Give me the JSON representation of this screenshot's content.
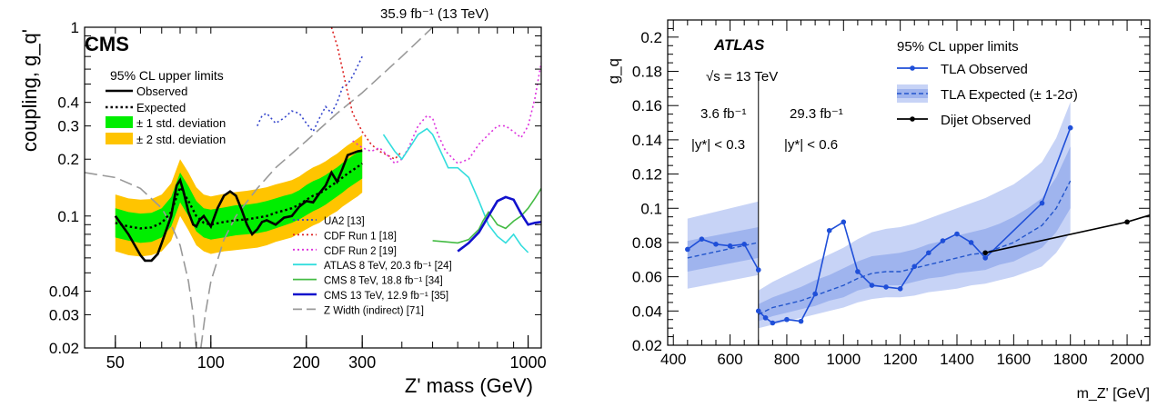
{
  "chart_data": [
    {
      "type": "line",
      "title": "CMS",
      "energy_label": "35.9 fb⁻¹ (13 TeV)",
      "subtitle": "95% CL upper limits",
      "xlabel": "Z' mass (GeV)",
      "ylabel": "coupling, g_q'",
      "xscale": "log",
      "yscale": "log",
      "xlim": [
        40,
        1100
      ],
      "ylim": [
        0.02,
        1
      ],
      "x_ticks": [
        {
          "v": 50,
          "label": "50"
        },
        {
          "v": 100,
          "label": "100"
        },
        {
          "v": 200,
          "label": "200"
        },
        {
          "v": 300,
          "label": "300"
        },
        {
          "v": 1000,
          "label": "1000"
        }
      ],
      "y_ticks": [
        {
          "v": 0.02,
          "label": "0.02"
        },
        {
          "v": 0.03,
          "label": "0.03"
        },
        {
          "v": 0.04,
          "label": "0.04"
        },
        {
          "v": 0.1,
          "label": "0.1"
        },
        {
          "v": 0.2,
          "label": "0.2"
        },
        {
          "v": 0.3,
          "label": "0.3"
        },
        {
          "v": 0.4,
          "label": "0.4"
        },
        {
          "v": 1,
          "label": "1"
        }
      ],
      "legend_main": [
        {
          "label": "Observed",
          "style": "solid"
        },
        {
          "label": "Expected",
          "style": "dotted"
        },
        {
          "label": "± 1 std. deviation",
          "style": "band",
          "color": "#00ee00"
        },
        {
          "label": "± 2 std. deviation",
          "style": "band",
          "color": "#ffc400"
        }
      ],
      "legend_other": [
        {
          "label": "UA2 [13]",
          "color": "#3344cc",
          "dash": "dot"
        },
        {
          "label": "CDF Run 1 [18]",
          "color": "#dd2222",
          "dash": "dot"
        },
        {
          "label": "CDF Run 2 [19]",
          "color": "#dd33dd",
          "dash": "dot"
        },
        {
          "label": "ATLAS 8 TeV, 20.3 fb⁻¹ [24]",
          "color": "#33dddd",
          "dash": "solid"
        },
        {
          "label": "CMS 8 TeV, 18.8 fb⁻¹ [34]",
          "color": "#44bb44",
          "dash": "solid"
        },
        {
          "label": "CMS 13 TeV, 12.9 fb⁻¹ [35]",
          "color": "#1111cc",
          "dash": "solid"
        },
        {
          "label": "Z Width (indirect) [71]",
          "color": "#999999",
          "dash": "dash"
        }
      ],
      "band_x": [
        50,
        55,
        60,
        65,
        70,
        75,
        80,
        85,
        90,
        95,
        100,
        110,
        120,
        130,
        140,
        150,
        160,
        170,
        180,
        190,
        200,
        210,
        220,
        230,
        240,
        250,
        260,
        270,
        280,
        290,
        300
      ],
      "expected": [
        0.092,
        0.088,
        0.086,
        0.087,
        0.092,
        0.105,
        0.142,
        0.12,
        0.1,
        0.092,
        0.09,
        0.093,
        0.095,
        0.096,
        0.098,
        0.1,
        0.104,
        0.107,
        0.11,
        0.115,
        0.122,
        0.128,
        0.132,
        0.138,
        0.145,
        0.152,
        0.16,
        0.168,
        0.175,
        0.182,
        0.19
      ],
      "band1_lo": [
        0.077,
        0.074,
        0.072,
        0.073,
        0.077,
        0.088,
        0.118,
        0.1,
        0.083,
        0.077,
        0.075,
        0.077,
        0.079,
        0.08,
        0.081,
        0.083,
        0.086,
        0.089,
        0.092,
        0.096,
        0.101,
        0.106,
        0.11,
        0.115,
        0.121,
        0.127,
        0.133,
        0.14,
        0.146,
        0.152,
        0.158
      ],
      "band1_hi": [
        0.11,
        0.105,
        0.103,
        0.104,
        0.11,
        0.126,
        0.17,
        0.144,
        0.12,
        0.11,
        0.108,
        0.111,
        0.114,
        0.115,
        0.117,
        0.12,
        0.124,
        0.128,
        0.131,
        0.137,
        0.146,
        0.153,
        0.158,
        0.165,
        0.173,
        0.181,
        0.191,
        0.2,
        0.209,
        0.217,
        0.227
      ],
      "band2_lo": [
        0.065,
        0.062,
        0.061,
        0.062,
        0.065,
        0.074,
        0.1,
        0.084,
        0.07,
        0.065,
        0.063,
        0.065,
        0.066,
        0.067,
        0.068,
        0.07,
        0.073,
        0.075,
        0.077,
        0.081,
        0.085,
        0.089,
        0.092,
        0.097,
        0.102,
        0.106,
        0.112,
        0.117,
        0.122,
        0.127,
        0.133
      ],
      "band2_hi": [
        0.13,
        0.124,
        0.122,
        0.123,
        0.13,
        0.149,
        0.2,
        0.17,
        0.142,
        0.13,
        0.127,
        0.131,
        0.134,
        0.136,
        0.139,
        0.142,
        0.147,
        0.151,
        0.155,
        0.162,
        0.172,
        0.181,
        0.187,
        0.195,
        0.205,
        0.214,
        0.226,
        0.237,
        0.247,
        0.257,
        0.268
      ],
      "observed": {
        "x": [
          50,
          55,
          60,
          62,
          65,
          68,
          70,
          75,
          78,
          80,
          82,
          85,
          88,
          90,
          92,
          95,
          100,
          105,
          110,
          115,
          120,
          125,
          130,
          135,
          140,
          145,
          150,
          160,
          170,
          180,
          190,
          200,
          210,
          220,
          230,
          240,
          250,
          260,
          270,
          280,
          290,
          300
        ],
        "y": [
          0.1,
          0.08,
          0.062,
          0.058,
          0.058,
          0.063,
          0.072,
          0.1,
          0.145,
          0.155,
          0.135,
          0.105,
          0.09,
          0.088,
          0.095,
          0.1,
          0.088,
          0.11,
          0.128,
          0.135,
          0.128,
          0.108,
          0.09,
          0.08,
          0.085,
          0.093,
          0.095,
          0.09,
          0.098,
          0.1,
          0.112,
          0.12,
          0.118,
          0.132,
          0.145,
          0.17,
          0.152,
          0.178,
          0.21,
          0.215,
          0.22,
          0.222
        ]
      },
      "ua2": {
        "x": [
          140,
          145,
          150,
          160,
          170,
          180,
          190,
          200,
          210,
          220,
          230,
          240,
          250,
          260,
          270,
          280,
          300
        ],
        "y": [
          0.3,
          0.34,
          0.35,
          0.31,
          0.33,
          0.36,
          0.35,
          0.31,
          0.28,
          0.33,
          0.38,
          0.35,
          0.4,
          0.48,
          0.5,
          0.55,
          0.7
        ]
      },
      "cdf1": {
        "x": [
          240,
          250,
          260,
          270,
          280,
          300,
          320,
          340,
          360,
          380,
          400
        ],
        "y": [
          1.0,
          0.8,
          0.6,
          0.45,
          0.35,
          0.28,
          0.24,
          0.22,
          0.21,
          0.2,
          0.22
        ]
      },
      "cdf2": {
        "x": [
          280,
          300,
          320,
          340,
          360,
          380,
          400,
          420,
          450,
          480,
          500,
          520,
          550,
          600,
          650,
          700,
          750,
          800,
          850,
          900,
          950,
          1000,
          1050,
          1100
        ],
        "y": [
          0.25,
          0.23,
          0.22,
          0.23,
          0.21,
          0.19,
          0.2,
          0.23,
          0.3,
          0.34,
          0.33,
          0.27,
          0.22,
          0.19,
          0.2,
          0.24,
          0.27,
          0.3,
          0.3,
          0.28,
          0.26,
          0.3,
          0.42,
          0.65
        ]
      },
      "atlas8": {
        "x": [
          350,
          380,
          400,
          430,
          450,
          480,
          500,
          530,
          560,
          600,
          650,
          700,
          750,
          800,
          850,
          900,
          950,
          1000
        ],
        "y": [
          0.27,
          0.22,
          0.2,
          0.24,
          0.27,
          0.29,
          0.27,
          0.22,
          0.18,
          0.18,
          0.16,
          0.12,
          0.09,
          0.078,
          0.072,
          0.08,
          0.07,
          0.064
        ]
      },
      "cms8": {
        "x": [
          500,
          550,
          600,
          650,
          700,
          720,
          750,
          800,
          850,
          900,
          950,
          1000,
          1050,
          1100
        ],
        "y": [
          0.074,
          0.073,
          0.072,
          0.075,
          0.085,
          0.094,
          0.105,
          0.09,
          0.086,
          0.094,
          0.1,
          0.11,
          0.124,
          0.14
        ]
      },
      "cms13": {
        "x": [
          600,
          650,
          700,
          750,
          800,
          850,
          900,
          950,
          1000,
          1050,
          1100
        ],
        "y": [
          0.065,
          0.072,
          0.082,
          0.1,
          0.12,
          0.126,
          0.122,
          0.103,
          0.09,
          0.092,
          0.093
        ]
      },
      "zwidth_left": {
        "x": [
          40,
          50,
          60,
          70,
          75,
          80,
          85,
          88,
          90
        ],
        "y": [
          0.17,
          0.16,
          0.14,
          0.11,
          0.09,
          0.07,
          0.045,
          0.03,
          0.02
        ]
      },
      "zwidth_right": {
        "x": [
          93,
          96,
          100,
          110,
          120,
          140,
          160,
          200,
          250,
          300,
          400,
          500
        ],
        "y": [
          0.02,
          0.03,
          0.045,
          0.075,
          0.1,
          0.14,
          0.18,
          0.25,
          0.35,
          0.45,
          0.7,
          1.0
        ]
      }
    },
    {
      "type": "line",
      "title": "ATLAS",
      "sqrt_s": "√s = 13 TeV",
      "lumi_left": "3.6 fb⁻¹",
      "lumi_right": "29.3 fb⁻¹",
      "rap_left": "|y*| < 0.3",
      "rap_right": "|y*| < 0.6",
      "xlabel": "m_Z' [GeV]",
      "ylabel": "g_q",
      "xlim": [
        380,
        2080
      ],
      "ylim": [
        0.02,
        0.21
      ],
      "x_ticks": [
        400,
        600,
        800,
        1000,
        1200,
        1400,
        1600,
        1800,
        2000
      ],
      "y_ticks": [
        {
          "v": 0.02,
          "label": "0.02"
        },
        {
          "v": 0.04,
          "label": "0.04"
        },
        {
          "v": 0.06,
          "label": "0.06"
        },
        {
          "v": 0.08,
          "label": "0.08"
        },
        {
          "v": 0.1,
          "label": "0.1"
        },
        {
          "v": 0.12,
          "label": "0.12"
        },
        {
          "v": 0.14,
          "label": "0.14"
        },
        {
          "v": 0.16,
          "label": "0.16"
        },
        {
          "v": 0.18,
          "label": "0.18"
        },
        {
          "v": 0.2,
          "label": "0.2"
        }
      ],
      "divider_x": 700,
      "legend_title": "95% CL upper limits",
      "legend": [
        {
          "label": "TLA Observed",
          "style": "marker-line",
          "color": "#1f4fd8"
        },
        {
          "label": "TLA Expected (± 1-2σ)",
          "style": "band-dash",
          "color": "#2255cc"
        },
        {
          "label": "Dijet Observed",
          "style": "marker-line",
          "color": "#000000"
        }
      ],
      "low_band": {
        "x": [
          450,
          700
        ],
        "exp": [
          0.071,
          0.08
        ],
        "s1lo": [
          0.063,
          0.071
        ],
        "s1hi": [
          0.081,
          0.089
        ],
        "s2lo": [
          0.053,
          0.061
        ],
        "s2hi": [
          0.094,
          0.104
        ]
      },
      "high_band": {
        "x": [
          700,
          750,
          800,
          850,
          900,
          950,
          1000,
          1050,
          1100,
          1150,
          1200,
          1250,
          1300,
          1350,
          1400,
          1450,
          1500,
          1550,
          1600,
          1650,
          1700,
          1750,
          1800
        ],
        "exp": [
          0.038,
          0.042,
          0.044,
          0.046,
          0.049,
          0.052,
          0.055,
          0.059,
          0.062,
          0.063,
          0.063,
          0.065,
          0.067,
          0.069,
          0.071,
          0.073,
          0.074,
          0.077,
          0.08,
          0.085,
          0.09,
          0.1,
          0.116
        ],
        "s1lo": [
          0.034,
          0.037,
          0.039,
          0.041,
          0.043,
          0.046,
          0.048,
          0.052,
          0.054,
          0.055,
          0.055,
          0.057,
          0.059,
          0.06,
          0.062,
          0.063,
          0.064,
          0.067,
          0.069,
          0.073,
          0.077,
          0.086,
          0.1
        ],
        "s1hi": [
          0.044,
          0.048,
          0.051,
          0.054,
          0.058,
          0.061,
          0.065,
          0.069,
          0.072,
          0.073,
          0.074,
          0.076,
          0.079,
          0.081,
          0.084,
          0.086,
          0.088,
          0.091,
          0.095,
          0.1,
          0.106,
          0.118,
          0.136
        ],
        "s2lo": [
          0.03,
          0.032,
          0.034,
          0.036,
          0.038,
          0.04,
          0.042,
          0.045,
          0.047,
          0.048,
          0.048,
          0.049,
          0.051,
          0.052,
          0.053,
          0.055,
          0.056,
          0.058,
          0.06,
          0.063,
          0.066,
          0.074,
          0.086
        ],
        "s2hi": [
          0.052,
          0.057,
          0.061,
          0.065,
          0.069,
          0.073,
          0.077,
          0.082,
          0.086,
          0.088,
          0.089,
          0.091,
          0.094,
          0.097,
          0.1,
          0.103,
          0.106,
          0.11,
          0.114,
          0.12,
          0.127,
          0.141,
          0.162
        ]
      },
      "tla_obs_low": {
        "x": [
          450,
          500,
          550,
          600,
          650,
          700
        ],
        "y": [
          0.076,
          0.082,
          0.079,
          0.078,
          0.079,
          0.064
        ]
      },
      "tla_obs_high": {
        "x": [
          700,
          725,
          750,
          800,
          850,
          900,
          950,
          1000,
          1050,
          1100,
          1150,
          1200,
          1250,
          1300,
          1350,
          1400,
          1450,
          1500,
          1700,
          1800
        ],
        "y": [
          0.04,
          0.036,
          0.033,
          0.035,
          0.034,
          0.05,
          0.087,
          0.092,
          0.063,
          0.055,
          0.054,
          0.053,
          0.066,
          0.074,
          0.081,
          0.085,
          0.08,
          0.071,
          0.103,
          0.147
        ]
      },
      "dijet_obs": {
        "x": [
          1500,
          2000,
          2080
        ],
        "y": [
          0.074,
          0.092,
          0.096
        ],
        "markers": [
          1500,
          2000
        ]
      }
    }
  ]
}
